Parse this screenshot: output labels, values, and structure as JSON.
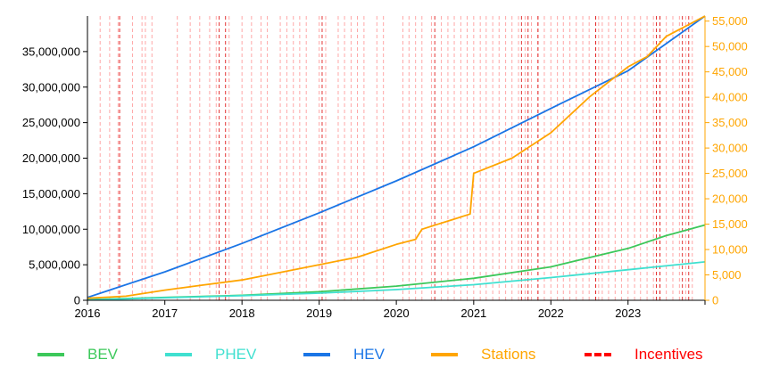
{
  "chart_data": {
    "type": "line",
    "x_axis": {
      "ticks": [
        "2016",
        "2017",
        "2018",
        "2019",
        "2020",
        "2021",
        "2022",
        "2023"
      ],
      "range": [
        "2016-01-01",
        "2023-12-31"
      ]
    },
    "y_left": {
      "ticks": [
        "0",
        "5,000,000",
        "10,000,000",
        "15,000,000",
        "20,000,000",
        "25,000,000",
        "30,000,000",
        "35,000,000"
      ],
      "range": [
        0,
        40000000
      ]
    },
    "y_right": {
      "ticks": [
        "0",
        "5,000",
        "10,000",
        "15,000",
        "20,000",
        "25,000",
        "30,000",
        "35,000",
        "40,000",
        "45,000",
        "50,000",
        "55,000"
      ],
      "range": [
        0,
        56000
      ],
      "color": "#ffa500"
    },
    "series": [
      {
        "name": "BEV",
        "axis": "left",
        "color": "#3cc85a",
        "points": [
          [
            "2016-01-01",
            100000
          ],
          [
            "2017-01-01",
            400000
          ],
          [
            "2018-01-01",
            700000
          ],
          [
            "2019-01-01",
            1200000
          ],
          [
            "2020-01-01",
            2000000
          ],
          [
            "2021-01-01",
            3100000
          ],
          [
            "2022-01-01",
            4700000
          ],
          [
            "2022-07-01",
            6000000
          ],
          [
            "2023-01-01",
            7300000
          ],
          [
            "2023-07-01",
            9100000
          ],
          [
            "2023-12-31",
            10600000
          ]
        ]
      },
      {
        "name": "PHEV",
        "axis": "left",
        "color": "#40e0d0",
        "points": [
          [
            "2016-01-01",
            50000
          ],
          [
            "2017-01-01",
            350000
          ],
          [
            "2018-01-01",
            650000
          ],
          [
            "2019-01-01",
            1000000
          ],
          [
            "2020-01-01",
            1500000
          ],
          [
            "2021-01-01",
            2200000
          ],
          [
            "2022-01-01",
            3200000
          ],
          [
            "2023-01-01",
            4300000
          ],
          [
            "2023-12-31",
            5400000
          ]
        ]
      },
      {
        "name": "HEV",
        "axis": "left",
        "color": "#1a75e6",
        "points": [
          [
            "2016-01-01",
            400000
          ],
          [
            "2017-01-01",
            4000000
          ],
          [
            "2018-01-01",
            8000000
          ],
          [
            "2019-01-01",
            12300000
          ],
          [
            "2020-01-01",
            16800000
          ],
          [
            "2021-01-01",
            21600000
          ],
          [
            "2022-01-01",
            27000000
          ],
          [
            "2023-01-01",
            32300000
          ],
          [
            "2023-12-31",
            40000000
          ]
        ]
      },
      {
        "name": "Stations",
        "axis": "right",
        "color": "#ffa500",
        "points": [
          [
            "2016-01-01",
            400
          ],
          [
            "2016-07-01",
            800
          ],
          [
            "2017-01-01",
            2000
          ],
          [
            "2017-07-01",
            3000
          ],
          [
            "2018-01-01",
            4000
          ],
          [
            "2018-07-01",
            5500
          ],
          [
            "2019-01-01",
            7000
          ],
          [
            "2019-07-01",
            8500
          ],
          [
            "2020-01-01",
            11000
          ],
          [
            "2020-04-01",
            12000
          ],
          [
            "2020-05-01",
            14000
          ],
          [
            "2020-07-01",
            14800
          ],
          [
            "2020-10-01",
            16000
          ],
          [
            "2020-12-15",
            17000
          ],
          [
            "2021-01-01",
            25000
          ],
          [
            "2021-07-01",
            28000
          ],
          [
            "2022-01-01",
            33000
          ],
          [
            "2022-07-01",
            40000
          ],
          [
            "2023-01-01",
            46000
          ],
          [
            "2023-04-01",
            48000
          ],
          [
            "2023-07-01",
            52000
          ],
          [
            "2023-12-31",
            56000
          ]
        ]
      }
    ],
    "incentives": {
      "name": "Incentives",
      "color": "#ff0000",
      "dates": [
        "2016-03-01",
        "2016-04-15",
        "2016-05-25",
        "2016-06-01",
        "2016-08-01",
        "2016-09-15",
        "2016-10-01",
        "2016-11-01",
        "2017-03-01",
        "2017-05-01",
        "2017-06-15",
        "2017-08-01",
        "2017-09-01",
        "2017-11-01",
        "2018-01-01",
        "2018-02-15",
        "2018-04-01",
        "2018-05-01",
        "2018-07-01",
        "2018-08-01",
        "2018-09-01",
        "2018-10-01",
        "2018-11-01",
        "2019-01-01",
        "2019-02-01",
        "2019-04-01",
        "2019-05-01",
        "2019-06-01",
        "2019-07-01",
        "2019-08-01",
        "2019-10-01",
        "2019-11-01",
        "2020-02-01",
        "2020-03-01",
        "2020-04-01",
        "2020-05-01",
        "2020-06-15",
        "2020-08-01",
        "2020-09-01",
        "2020-10-01",
        "2020-11-01",
        "2020-12-01",
        "2021-01-01",
        "2021-02-01",
        "2021-03-01",
        "2021-04-01",
        "2021-05-01",
        "2021-06-01",
        "2021-07-01",
        "2021-08-01",
        "2021-09-01",
        "2021-10-01",
        "2021-11-01",
        "2021-12-01",
        "2022-01-01",
        "2022-02-01",
        "2022-03-01",
        "2022-04-01",
        "2022-05-01",
        "2022-06-01",
        "2022-07-01",
        "2022-08-01",
        "2022-08-15",
        "2022-09-01",
        "2022-10-01",
        "2022-11-01",
        "2022-12-01",
        "2023-01-01",
        "2023-02-01",
        "2023-03-01",
        "2023-04-01",
        "2023-05-01",
        "2023-06-01",
        "2023-07-01",
        "2023-08-01",
        "2023-09-01",
        "2023-10-01",
        "2023-11-01"
      ],
      "strong_dates": [
        "2016-06-01",
        "2017-09-15",
        "2017-10-15",
        "2019-01-15",
        "2020-07-01",
        "2021-08-15",
        "2021-09-15",
        "2021-11-01",
        "2022-08-01",
        "2023-05-15",
        "2023-06-01",
        "2023-09-15",
        "2023-10-15"
      ]
    }
  },
  "legend": {
    "items": [
      {
        "label": "BEV",
        "color": "#3cc85a",
        "style": "solid"
      },
      {
        "label": "PHEV",
        "color": "#40e0d0",
        "style": "solid"
      },
      {
        "label": "HEV",
        "color": "#1a75e6",
        "style": "solid"
      },
      {
        "label": "Stations",
        "color": "#ffa500",
        "style": "solid"
      },
      {
        "label": "Incentives",
        "color": "#ff0000",
        "style": "dashed"
      }
    ]
  }
}
